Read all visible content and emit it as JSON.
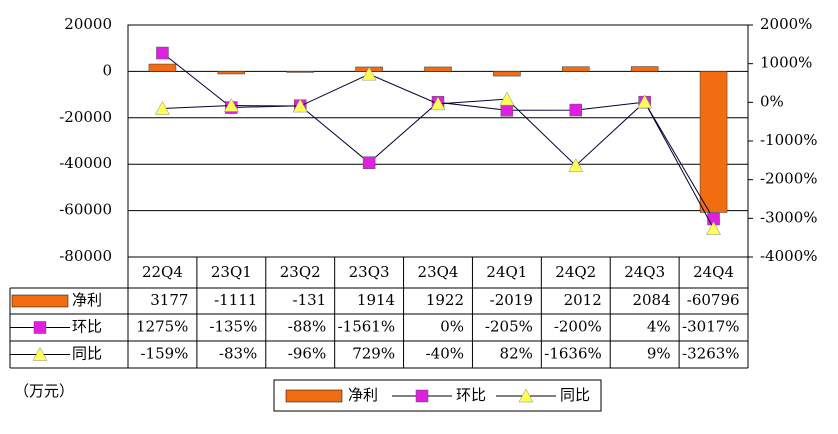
{
  "chart_data": {
    "type": "combo",
    "categories": [
      "22Q4",
      "23Q1",
      "23Q2",
      "23Q3",
      "23Q4",
      "24Q1",
      "24Q2",
      "24Q3",
      "24Q4"
    ],
    "series": [
      {
        "name": "净利",
        "type": "bar",
        "color": "#f26d12",
        "values": [
          3177,
          -1111,
          -131,
          1914,
          1922,
          -2019,
          2012,
          2084,
          -60796
        ]
      },
      {
        "name": "环比",
        "type": "line",
        "axis": "y2",
        "marker": "square",
        "color": "#e020e0",
        "values": [
          1275,
          -135,
          -88,
          -1561,
          0,
          -205,
          -200,
          4,
          -3017
        ],
        "value_labels": [
          "1275%",
          "-135%",
          "-88%",
          "-1561%",
          "0%",
          "-205%",
          "-200%",
          "4%",
          "-3017%"
        ]
      },
      {
        "name": "同比",
        "type": "line",
        "axis": "y2",
        "marker": "triangle",
        "color": "#ffff55",
        "values": [
          -159,
          -83,
          -96,
          729,
          -40,
          82,
          -1636,
          9,
          -3263
        ],
        "value_labels": [
          "-159%",
          "-83%",
          "-96%",
          "729%",
          "-40%",
          "82%",
          "-1636%",
          "9%",
          "-3263%"
        ]
      }
    ],
    "ylim": [
      -80000,
      20000
    ],
    "yticks": [
      -80000,
      -60000,
      -40000,
      -20000,
      0,
      20000
    ],
    "y2lim": [
      -4000,
      2000
    ],
    "y2ticks": [
      {
        "value": -4000,
        "label": "-4000%"
      },
      {
        "value": -3000,
        "label": "-3000%"
      },
      {
        "value": -2000,
        "label": "-2000%"
      },
      {
        "value": -1000,
        "label": "-1000%"
      },
      {
        "value": 0,
        "label": "0%"
      },
      {
        "value": 1000,
        "label": "1000%"
      },
      {
        "value": 2000,
        "label": "2000%"
      }
    ],
    "grid": true,
    "legend": "bottom",
    "annotation": "（万元）"
  }
}
